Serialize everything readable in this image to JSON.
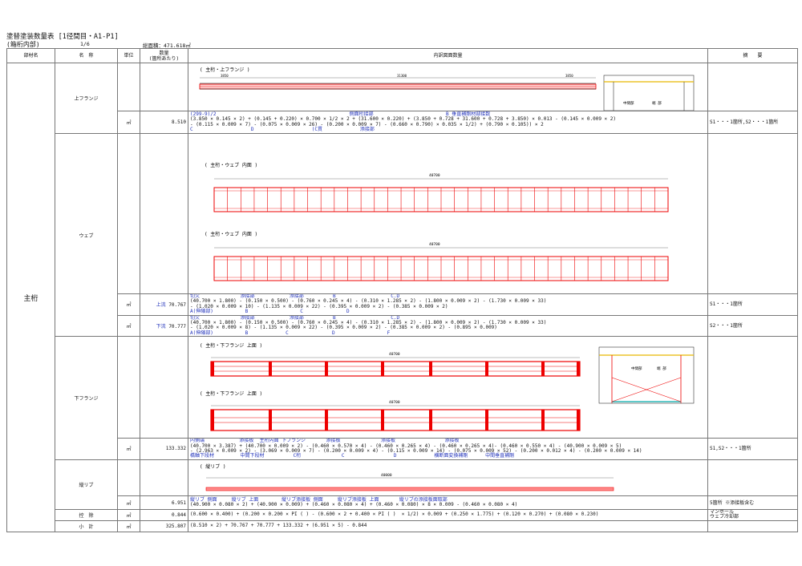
{
  "header": {
    "title": "塗替塗装数量表 [1径間目・A1-P1]",
    "subtitle": "(箱桁内部)",
    "page": "1/6",
    "total_area": "総面積：471.618㎡"
  },
  "columns": {
    "member": "部材名",
    "name": "名　称",
    "unit": "単位",
    "qty": "数量\n(箇所あたり)",
    "detail": "内訳図面数量",
    "remarks": "摘　　要"
  },
  "member_group": "主桁",
  "rows": {
    "upper_flange": {
      "name": "上フランジ",
      "unit": "㎡",
      "qty": "8.510",
      "drawing_title": "( 主桁・上フランジ )",
      "annot_top": "(299-9)/2                                              側面桁接部                         B 垂直補剛材部接数",
      "formula1": "(3.850 × 0.145 × 2) + (0.145 + 0.220) × 0.700 × 1/2 × 2 + (31.600 × 0.220) + (3.850 + 0.728 + 31.600 + 0.728 + 3.850) × 0.013 - (0.145 × 0.009 × 2)",
      "formula2": "- (0.115 × 0.009 × 7) - (0.075 × 0.009 × 26) - (0.200 × 0.009 × 7) - (0.660 × 0.790) × 0.035 × 1/2) + (0.790 × 0.105)) × 2",
      "annot_bot": "C                    D                    (C貫             添接部",
      "remarks": "S1・・・1箇所,S2・・・1箇所",
      "dim_total": "31300",
      "dim_left": "3850",
      "dim_right": "3850",
      "section_labels": [
        "中間部",
        "端 部"
      ]
    },
    "web": {
      "name": "ウェブ",
      "drawing1_title": "( 主桁・ウェブ 内面 )",
      "drawing2_title": "( 主桁・ウェブ 内面 )",
      "label_down": "下流",
      "label_up": "上流",
      "dim1": "40700",
      "dim2": "40700",
      "r1_unit": "㎡",
      "r1_side": "上流",
      "r1_qty": "70.767",
      "r1_annot_top": "切欠              添接部            添接部          B                   C.D",
      "r1_formula1": "(40.700 × 1.800) - (0.150 × 0.500) - (0.760 × 0.245 × 4) - (0.310 × 1.285 × 2) - (1.800 × 0.009 × 2) - (1.730 × 0.009 × 33)",
      "r1_formula2": "- (1.020 × 0.009 × 10) - (1.135 × 0.009 × 22) - (0.395 × 0.009 × 2) - (0.385 × 0.009 × 2)",
      "r1_annot_bot": "A(伸縮部)           B                  C               D",
      "r1_remarks": "S1・・・1箇所",
      "r2_unit": "㎡",
      "r2_side": "下流",
      "r2_qty": "70.777",
      "r2_annot_top": "切欠              添接部            添接部          B                   C.D",
      "r2_formula1": "(40.700 × 1.800) - (0.150 × 0.500) - (0.760 × 0.245 × 4) - (0.310 × 1.285 × 2) - (1.800 × 0.009 × 2) - (1.730 × 0.009 × 33)",
      "r2_formula2": "- (1.020 × 0.009 × 8) - (1.135 × 0.009 × 22) - (0.395 × 0.009 × 2) - (0.385 × 0.009 × 2) - (0.895 × 0.009)",
      "r2_annot_bot": "A(伸縮部)           B             C               D                  F",
      "r2_remarks": "S2・・・1箇所"
    },
    "lower_flange": {
      "name": "下フランジ",
      "drawing1_title": "( 主桁・下フランジ 上面 )",
      "drawing2_title": "( 主桁・下フランジ 上面 )",
      "dim1": "40700",
      "dim2": "40700",
      "unit": "㎡",
      "qty": "133.332",
      "annot_top": "内側端            添接板  主桁内面 下フランジ       添接板              添接板                 添接板",
      "formula1": "(40.700 × 3.387) + (40.700 × 0.009 × 2) - (0.460 × 0.570 × 4) - (0.460 × 0.265 × 4) - (0.460 × 0.265 × 4)- (0.460 × 0.550 × 4) - (40.900 × 0.009 × 5)",
      "formula2": "- (2.963 × 0.009 × 2) - (3.069 × 0.009 × 7) - (0.200 × 0.009 × 4) - (0.115 × 0.009 × 14) - (0.075 × 0.009 × 52) - (0.200 × 0.012 × 4) - (0.200 × 0.009 × 14)",
      "annot_bot": "橋軸下段材         中間下段材          C桁              C                 D             横断面変換補剛      中間垂直補剛",
      "remarks": "S1,S2・・・1箇所",
      "section_labels": [
        "中間部",
        "端 部"
      ]
    },
    "rib": {
      "name": "縦リブ",
      "drawing_title": "( 縦リブ )",
      "dim": "40000",
      "unit": "㎡",
      "qty": "6.951",
      "annot_top": "縦リブ 側面     縦リブ 上面        縦リブ添接板 側面     縦リブ添接板 上面       縦リブの添接板面取部",
      "formula": "(40.900 × 0.080 × 2) + (40.900 × 0.009) + (0.460 × 0.080 × 4) + (0.460 × 0.080) × 8 × 0.009 - (0.460 × 0.080 × 4)",
      "remarks": "5箇所 ※添接板含む"
    },
    "deduct": {
      "name": "控　除",
      "unit": "㎡",
      "qty": "0.844",
      "formula": "(0.600 × 0.400) + (0.200 × 0.200 × PI ( ) - (0.600 × 2 + 0.400 × PI ( )  × 1/2) × 0.009 + (0.250 × 1.775) + (0.120 × 0.270) + (0.080 × 0.230)",
      "remarks": "マンホール\nウェブ冷却部"
    },
    "subtotal": {
      "name": "小　計",
      "unit": "㎡",
      "qty": "325.807",
      "formula": "(8.510 × 2) + 70.767 + 70.777 + 133.332 + (6.951 × 5) - 0.844"
    }
  }
}
